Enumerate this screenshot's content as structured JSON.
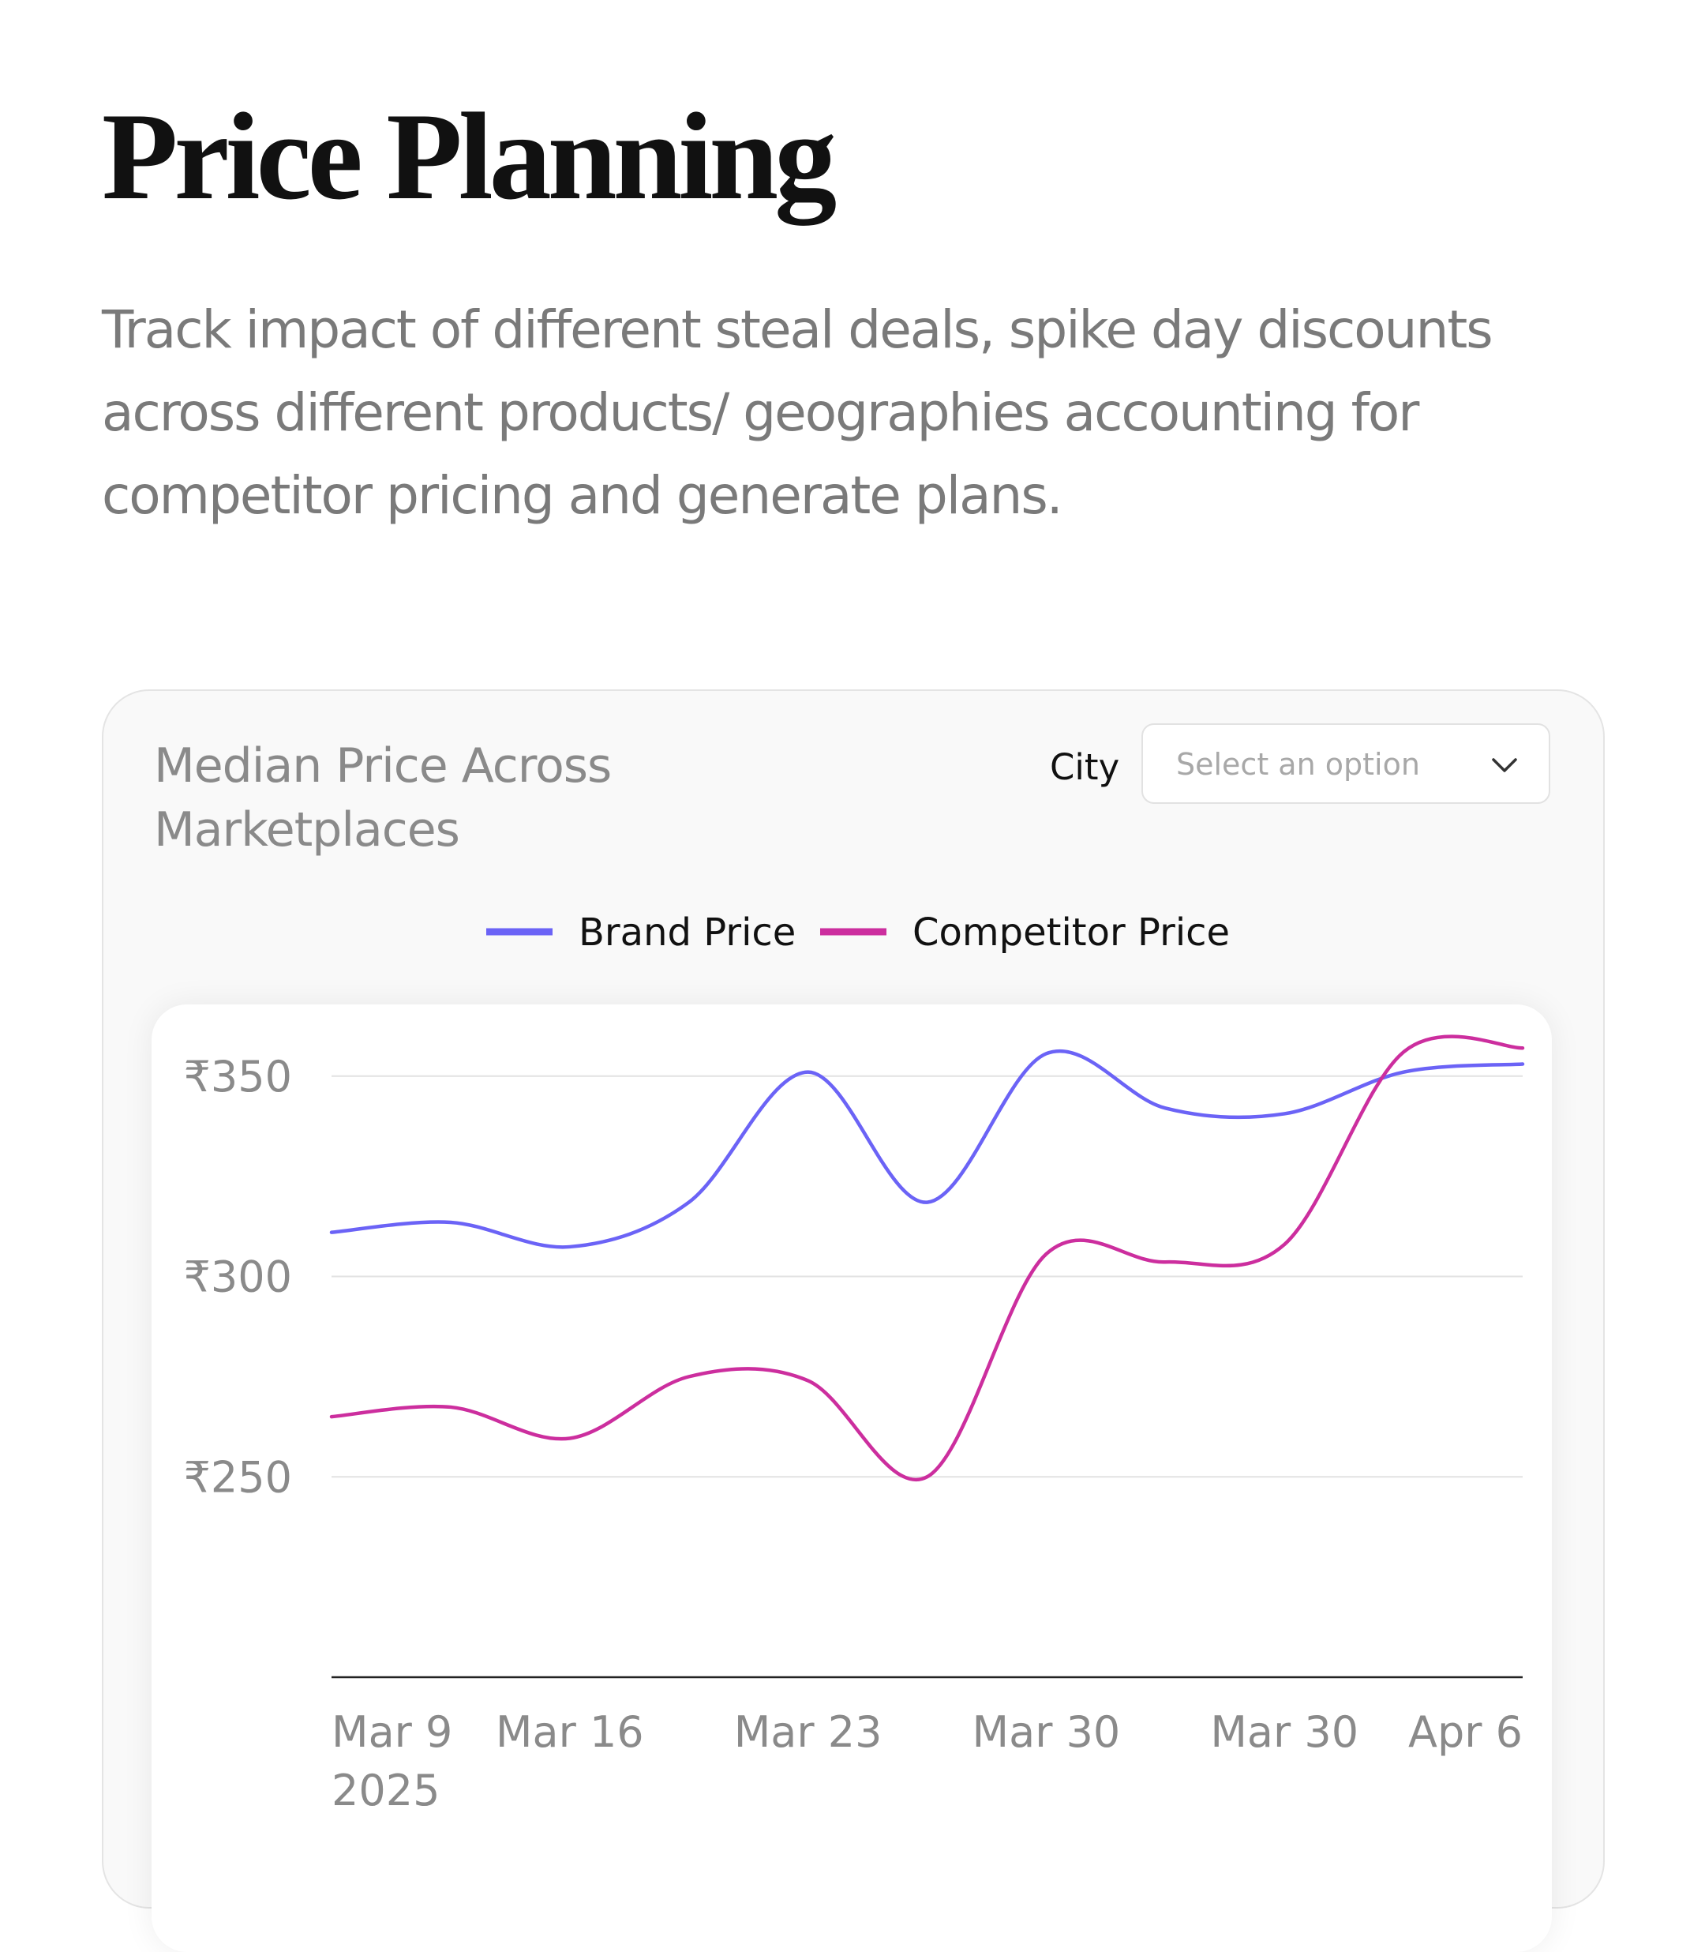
{
  "header": {
    "title": "Price Planning",
    "description": "Track impact of different steal deals, spike day discounts across different products/ geographies accounting for competitor pricing and generate plans."
  },
  "filter": {
    "label": "City",
    "placeholder": "Select an option"
  },
  "chart_data": {
    "type": "line",
    "title": "Median Price Across Marketplaces",
    "categories": [
      "Mar 9",
      null,
      "Mar 16",
      null,
      "Mar 23",
      null,
      "Mar 30",
      null,
      "Mar 30",
      null,
      "Apr 6"
    ],
    "year": "2025",
    "series": [
      {
        "name": "Brand Price",
        "color": "#6b63f6",
        "values": [
          311,
          313.5,
          307.4,
          318.5,
          351,
          318.5,
          355.6,
          342,
          340.6,
          351,
          353
        ]
      },
      {
        "name": "Competitor Price",
        "color": "#cc2e9e",
        "values": [
          265,
          267.4,
          259.6,
          275,
          274,
          250,
          305.6,
          303.6,
          308,
          356,
          357
        ]
      }
    ],
    "ylim": [
      200,
      360
    ],
    "yticks": [
      {
        "value": 250,
        "label": "₹250"
      },
      {
        "value": 300,
        "label": "₹300"
      },
      {
        "value": 350,
        "label": "₹350"
      }
    ],
    "grid": true,
    "legend": "top"
  }
}
